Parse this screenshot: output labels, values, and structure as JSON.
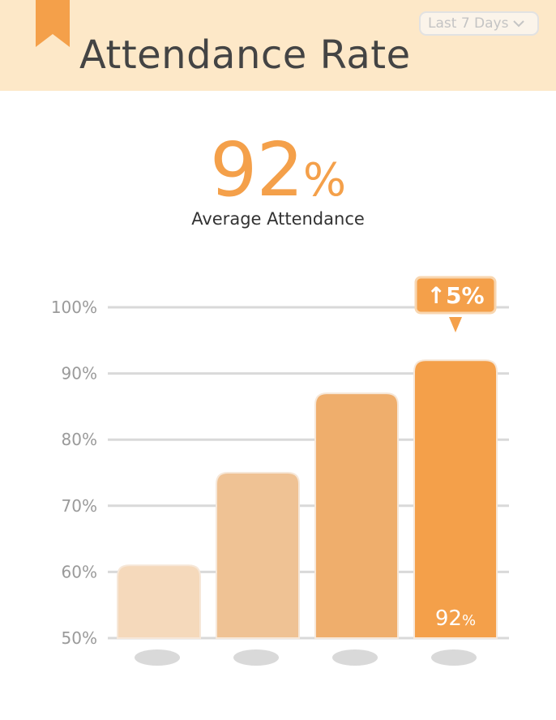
{
  "header": {
    "title": "Attendance Rate",
    "range_selector": {
      "label": "Last 7 Days",
      "icon": "chevron-down-icon"
    }
  },
  "kpi": {
    "value": "92",
    "unit": "%",
    "label": "Average Attendance"
  },
  "colors": {
    "accent": "#f4a04a",
    "header_bg": "#fde8c8",
    "bars": [
      "#f5d9bb",
      "#efc294",
      "#efae6c",
      "#f4a04a"
    ]
  },
  "chart_data": {
    "type": "bar",
    "categories": [
      "",
      "",
      "",
      ""
    ],
    "values": [
      61,
      75,
      87,
      92
    ],
    "yticks": [
      "50%",
      "60%",
      "70%",
      "80%",
      "90%",
      "100%"
    ],
    "ylim": [
      50,
      100
    ],
    "grid": true,
    "data_label": {
      "bar_index": 3,
      "value": "92",
      "unit": "%"
    },
    "change_badge": {
      "arrow": "↑",
      "text": "5%",
      "bar_index": 3
    }
  }
}
